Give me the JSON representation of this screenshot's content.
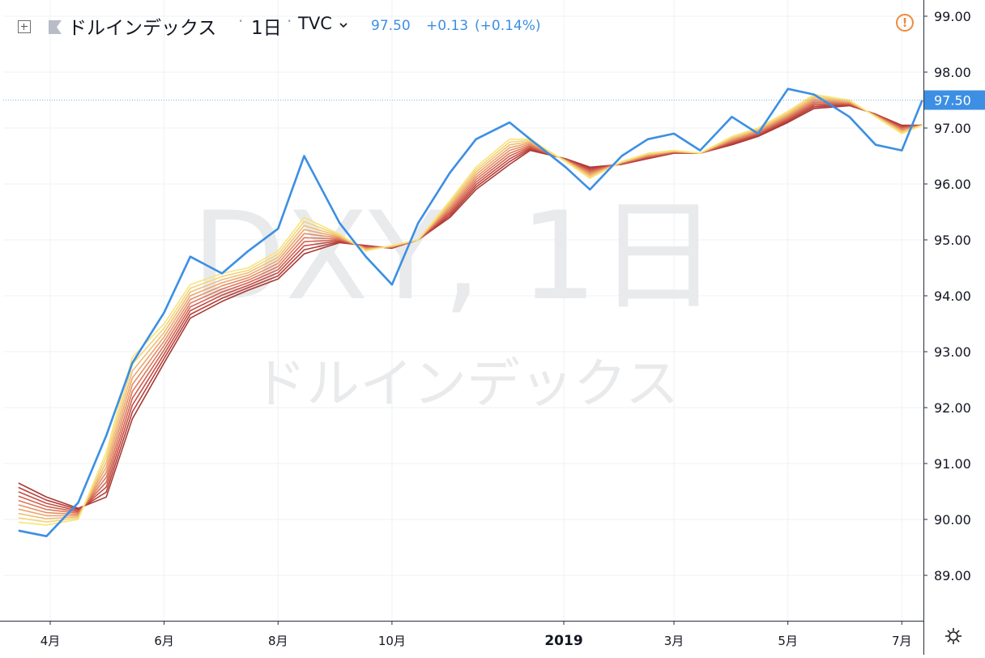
{
  "header": {
    "symbol_name": "ドルインデックス",
    "separator": "·",
    "interval": "1日",
    "exchange": "TVC",
    "exchange_chevron": "chevron-down-icon",
    "last_price": "97.50",
    "change": "+0.13",
    "change_percent": "(+0.14%)"
  },
  "watermark": {
    "line1": "DXY, 1日",
    "line2": "ドルインデックス"
  },
  "colors": {
    "price_line": "#3c8fe3",
    "grid": "#eef1f4",
    "last_price_badge": "#3c8fe3",
    "alert": "#ef8b3e",
    "ribbon": [
      "#f7e57a",
      "#f4d37a",
      "#f0bd73",
      "#eba66d",
      "#e58f65",
      "#de785c",
      "#d26250",
      "#c64e45",
      "#b6403b",
      "#a83a33"
    ]
  },
  "chart_data": {
    "type": "line",
    "title": "",
    "xlabel": "",
    "ylabel": "",
    "x_ticks": [
      "4月",
      "6月",
      "8月",
      "10月",
      "2019",
      "3月",
      "5月",
      "7月"
    ],
    "y_ticks": [
      "89.00",
      "90.00",
      "91.00",
      "92.00",
      "93.00",
      "94.00",
      "95.00",
      "96.00",
      "97.00",
      "98.00",
      "99.00"
    ],
    "ylim": [
      88.2,
      99.2
    ],
    "x": [
      "2018-03-15",
      "2018-03-30",
      "2018-04-16",
      "2018-05-01",
      "2018-05-15",
      "2018-06-01",
      "2018-06-15",
      "2018-07-02",
      "2018-07-16",
      "2018-08-01",
      "2018-08-15",
      "2018-09-03",
      "2018-09-17",
      "2018-10-01",
      "2018-10-15",
      "2018-11-01",
      "2018-11-15",
      "2018-12-03",
      "2018-12-14",
      "2019-01-02",
      "2019-01-15",
      "2019-02-01",
      "2019-02-15",
      "2019-03-01",
      "2019-03-15",
      "2019-04-01",
      "2019-04-15",
      "2019-05-01",
      "2019-05-15",
      "2019-06-03",
      "2019-06-17",
      "2019-07-01",
      "2019-07-12"
    ],
    "series": [
      {
        "name": "",
        "role": "price",
        "values": [
          89.8,
          89.7,
          90.3,
          91.5,
          92.8,
          93.7,
          94.7,
          94.4,
          94.8,
          95.2,
          96.5,
          95.3,
          94.7,
          94.2,
          95.3,
          96.2,
          96.8,
          97.1,
          96.8,
          96.3,
          95.9,
          96.5,
          96.8,
          96.9,
          96.6,
          97.2,
          96.9,
          97.7,
          97.6,
          97.2,
          96.7,
          96.6,
          97.5
        ]
      },
      {
        "name": "",
        "role": "ribbon-fastest",
        "values": [
          89.95,
          89.9,
          90.0,
          91.2,
          92.9,
          93.5,
          94.2,
          94.4,
          94.5,
          94.8,
          95.4,
          95.1,
          94.8,
          94.9,
          95.0,
          95.7,
          96.3,
          96.8,
          96.8,
          96.4,
          96.1,
          96.4,
          96.55,
          96.6,
          96.55,
          96.85,
          97.0,
          97.3,
          97.6,
          97.5,
          97.2,
          96.9,
          97.05
        ]
      },
      {
        "name": "",
        "role": "ribbon-slowest",
        "values": [
          90.65,
          90.4,
          90.2,
          90.4,
          91.8,
          92.8,
          93.6,
          93.9,
          94.1,
          94.3,
          94.75,
          94.95,
          94.9,
          94.85,
          95.0,
          95.4,
          95.9,
          96.35,
          96.6,
          96.45,
          96.3,
          96.35,
          96.45,
          96.55,
          96.55,
          96.7,
          96.85,
          97.1,
          97.35,
          97.4,
          97.25,
          97.05,
          97.05
        ]
      }
    ],
    "last_value": "97.50",
    "grid": true,
    "legend": "none"
  }
}
